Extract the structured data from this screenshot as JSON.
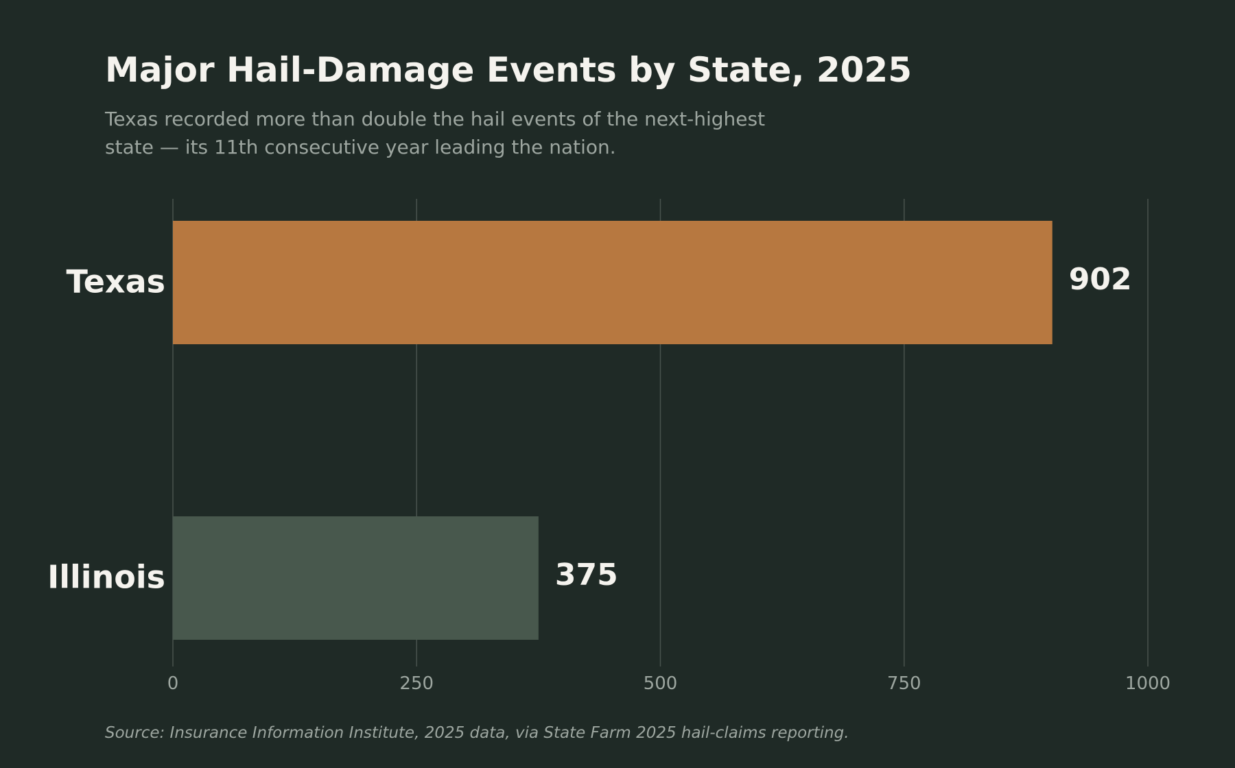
{
  "colors": {
    "background": "#1f2a26",
    "title": "#f5f3ee",
    "subtitle": "#9da6a0",
    "grid": "#48524d",
    "tick_text": "#9da6a0",
    "label_text": "#f5f3ee",
    "source_text": "#9da6a0",
    "highlight_bar": "#b77840",
    "other_bar": "#48584d"
  },
  "chart_data": {
    "type": "bar",
    "orientation": "horizontal",
    "title": "Major Hail-Damage Events by State, 2025",
    "subtitle_lines": [
      "Texas recorded more than double the hail events of the next-highest",
      "state — its 11th consecutive year leading the nation."
    ],
    "categories": [
      "Texas",
      "Illinois"
    ],
    "values": [
      902,
      375
    ],
    "value_labels": [
      "902",
      "375"
    ],
    "bar_colors": [
      "#b77840",
      "#48584d"
    ],
    "xlim": [
      0,
      1000
    ],
    "xticks": [
      0,
      250,
      500,
      750,
      1000
    ],
    "xtick_labels": [
      "0",
      "250",
      "500",
      "750",
      "1000"
    ],
    "xlabel": "",
    "ylabel": "",
    "grid": "vertical",
    "legend": "none",
    "source": "Source: Insurance Information Institute, 2025 data, via State Farm 2025 hail-claims reporting."
  }
}
